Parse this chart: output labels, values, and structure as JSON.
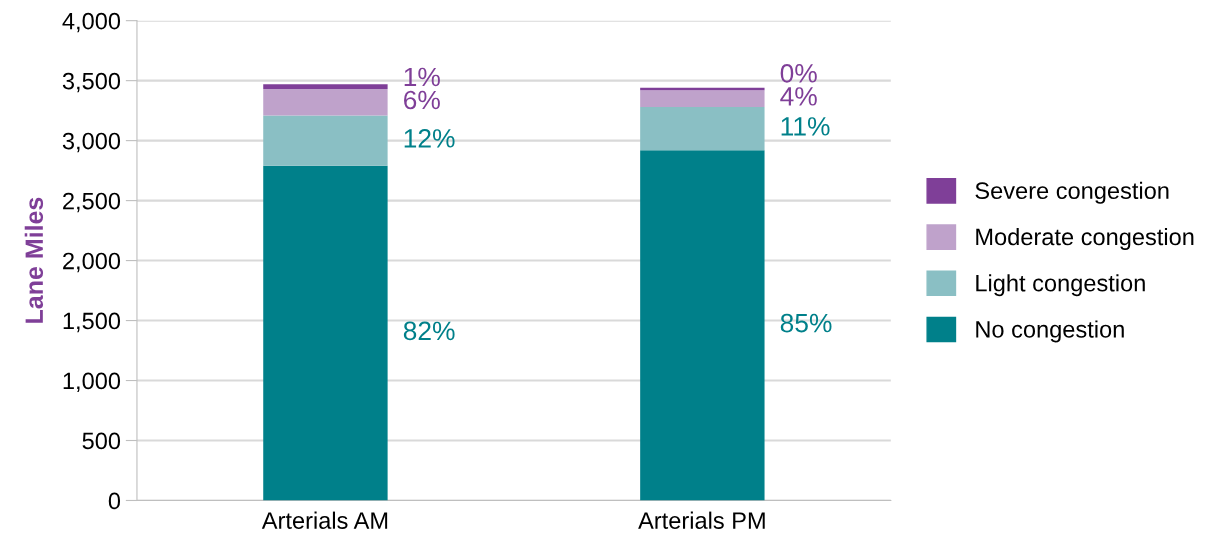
{
  "chart_data": {
    "type": "bar",
    "stacked": true,
    "ylabel": "Lane Miles",
    "categories": [
      "Arterials AM",
      "Arterials PM"
    ],
    "series": [
      {
        "name": "No congestion",
        "color": "#00808a",
        "values": [
          2790,
          2920
        ]
      },
      {
        "name": "Light congestion",
        "color": "#8abfc4",
        "values": [
          420,
          360
        ]
      },
      {
        "name": "Moderate congestion",
        "color": "#bfa2cb",
        "values": [
          220,
          140
        ]
      },
      {
        "name": "Severe congestion",
        "color": "#7f3f98",
        "values": [
          40,
          20
        ]
      }
    ],
    "annotations": [
      "82%",
      "12%",
      "6%",
      "1%",
      "85%",
      "11%",
      "4%",
      "0%"
    ],
    "ylim": [
      0,
      4000
    ],
    "yticks": [
      {
        "value": 0,
        "label": "0"
      },
      {
        "value": 500,
        "label": "500"
      },
      {
        "value": 1000,
        "label": "1,000"
      },
      {
        "value": 1500,
        "label": "1,500"
      },
      {
        "value": 2000,
        "label": "2,000"
      },
      {
        "value": 2500,
        "label": "2,500"
      },
      {
        "value": 3000,
        "label": "3,000"
      },
      {
        "value": 3500,
        "label": "3,500"
      },
      {
        "value": 4000,
        "label": "4,000"
      }
    ],
    "grid": "y",
    "legend": "right"
  }
}
